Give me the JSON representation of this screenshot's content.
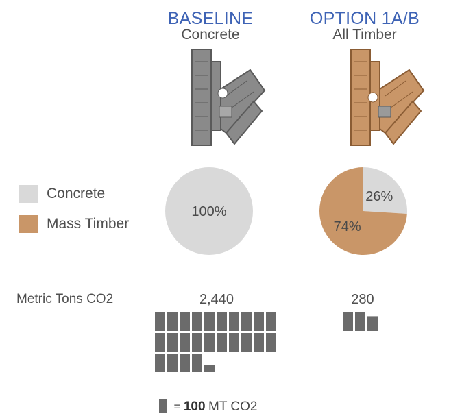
{
  "columns": [
    {
      "title": "BASELINE",
      "subtitle": "Concrete"
    },
    {
      "title": "OPTION 1A/B",
      "subtitle": "All Timber"
    }
  ],
  "legend": [
    {
      "label": "Concrete",
      "color": "#d9d9d9"
    },
    {
      "label": "Mass Timber",
      "color": "#c99668"
    }
  ],
  "row_label": "Metric Tons CO2",
  "scale_note": {
    "value": "100",
    "unit": "MT CO2",
    "prefix": "="
  },
  "colors": {
    "title": "#3e63b5",
    "concrete_plan": "#8a8a8a",
    "timber_plan": "#c99668",
    "block": "#6b6b6b"
  },
  "chart_data": [
    {
      "type": "pie",
      "title": "BASELINE",
      "subtitle": "Concrete",
      "slices": [
        {
          "name": "Concrete",
          "value": 100,
          "label": "100%"
        }
      ]
    },
    {
      "type": "pie",
      "title": "OPTION 1A/B",
      "subtitle": "All Timber",
      "slices": [
        {
          "name": "Concrete",
          "value": 26,
          "label": "26%"
        },
        {
          "name": "Mass Timber",
          "value": 74,
          "label": "74%"
        }
      ]
    },
    {
      "type": "bar",
      "title": "Metric Tons CO2",
      "categories": [
        "BASELINE",
        "OPTION 1A/B"
      ],
      "values": [
        2440,
        280
      ],
      "value_labels": [
        "2,440",
        "280"
      ],
      "unit_per_block": 100
    }
  ]
}
